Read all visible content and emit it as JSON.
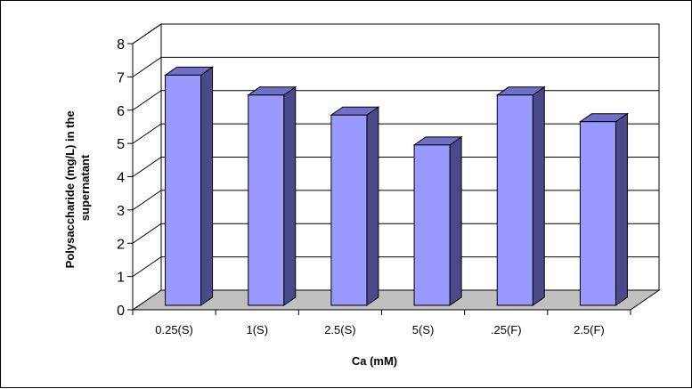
{
  "chart_data": {
    "type": "bar",
    "title": "",
    "xlabel": "Ca (mM)",
    "ylabel": [
      "Polysaccharide (mg/L) in the",
      "supernatant"
    ],
    "categories": [
      "0.25(S)",
      "1(S)",
      "2.5(S)",
      "5(S)",
      ".25(F)",
      "2.5(F)"
    ],
    "values": [
      7.0,
      6.4,
      5.8,
      4.9,
      6.4,
      5.6
    ],
    "ylim": [
      0,
      8
    ],
    "yticks": [
      "0",
      "1",
      "2",
      "3",
      "4",
      "5",
      "6",
      "7",
      "8"
    ],
    "grid": true,
    "legend": "none",
    "style": "3d-column",
    "colors": {
      "bar_front": "#9999ff",
      "bar_side": "#4a4a8a",
      "bar_top": "#7070c8",
      "floor": "#c0c0c0",
      "grid": "#000000"
    }
  }
}
